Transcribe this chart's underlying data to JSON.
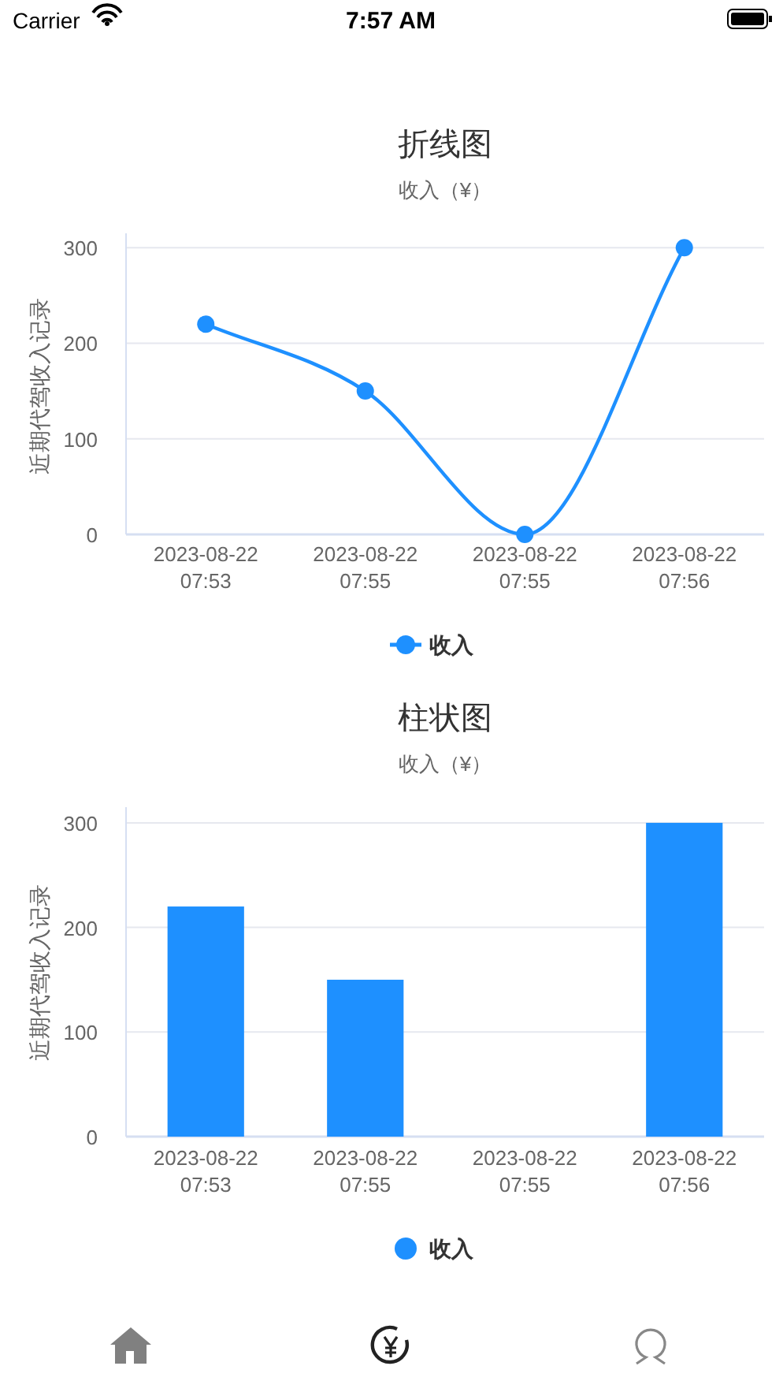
{
  "chart_data": [
    {
      "type": "line",
      "title": "折线图",
      "subtitle": "收入（¥）",
      "ylabel": "近期代驾收入记录",
      "categories": [
        "2023-08-22\n07:53",
        "2023-08-22\n07:55",
        "2023-08-22\n07:55",
        "2023-08-22\n07:56"
      ],
      "series": [
        {
          "name": "收入",
          "color": "#1e90ff",
          "values": [
            220,
            150,
            0,
            300
          ]
        }
      ],
      "ylim": [
        0,
        315
      ],
      "yticks": [
        0,
        100,
        200,
        300
      ],
      "grid": "y",
      "legend": "bottom",
      "marker": "circle",
      "line_style": "solid",
      "annotations": [
        "Carrier",
        "7:57 AM"
      ]
    },
    {
      "type": "bar",
      "title": "柱状图",
      "subtitle": "收入（¥）",
      "ylabel": "近期代驾收入记录",
      "categories": [
        "2023-08-22\n07:53",
        "2023-08-22\n07:55",
        "2023-08-22\n07:55",
        "2023-08-22\n07:56"
      ],
      "series": [
        {
          "name": "收入",
          "color": "#1e90ff",
          "values": [
            220,
            150,
            0,
            300
          ]
        }
      ],
      "ylim": [
        0,
        315
      ],
      "yticks": [
        0,
        100,
        200,
        300
      ],
      "grid": "y",
      "legend": "bottom"
    }
  ]
}
